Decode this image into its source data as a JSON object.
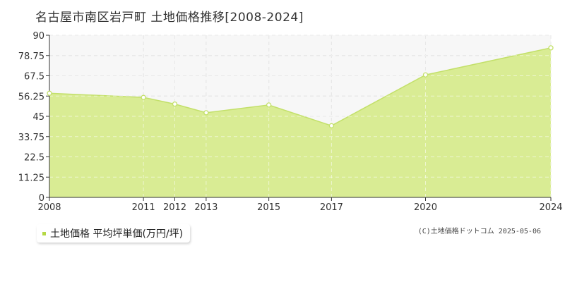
{
  "colors": {
    "area_fill": "#d9ec94",
    "line": "#c3e06a",
    "marker_fill": "#ffffff",
    "grid": "#cccccc",
    "axis": "#333333",
    "plot_bg_upper": "#f7f7f7",
    "legend_swatch": "#b5d845"
  },
  "chart_data": {
    "type": "area",
    "title": "名古屋市南区岩戸町 土地価格推移[2008-2024]",
    "x": [
      2008,
      2011,
      2012,
      2013,
      2015,
      2017,
      2020,
      2024
    ],
    "x_tick_labels": [
      "2008",
      "2011",
      "2012",
      "2013",
      "2015",
      "2017",
      "2020",
      "2024"
    ],
    "y_tick_labels": [
      "0",
      "11.25",
      "22.5",
      "33.75",
      "45",
      "56.25",
      "67.5",
      "78.75",
      "90"
    ],
    "ylim": [
      0,
      90
    ],
    "grid": true,
    "series": [
      {
        "name": "土地価格 平均坪単価(万円/坪)",
        "values": [
          57.8,
          55.5,
          51.8,
          47.0,
          51.3,
          39.8,
          68.0,
          83.0
        ]
      }
    ],
    "legend_position": "bottom-left"
  },
  "legend": {
    "label": "土地価格 平均坪単価(万円/坪)"
  },
  "copyright": "(C)土地価格ドットコム 2025-05-06"
}
